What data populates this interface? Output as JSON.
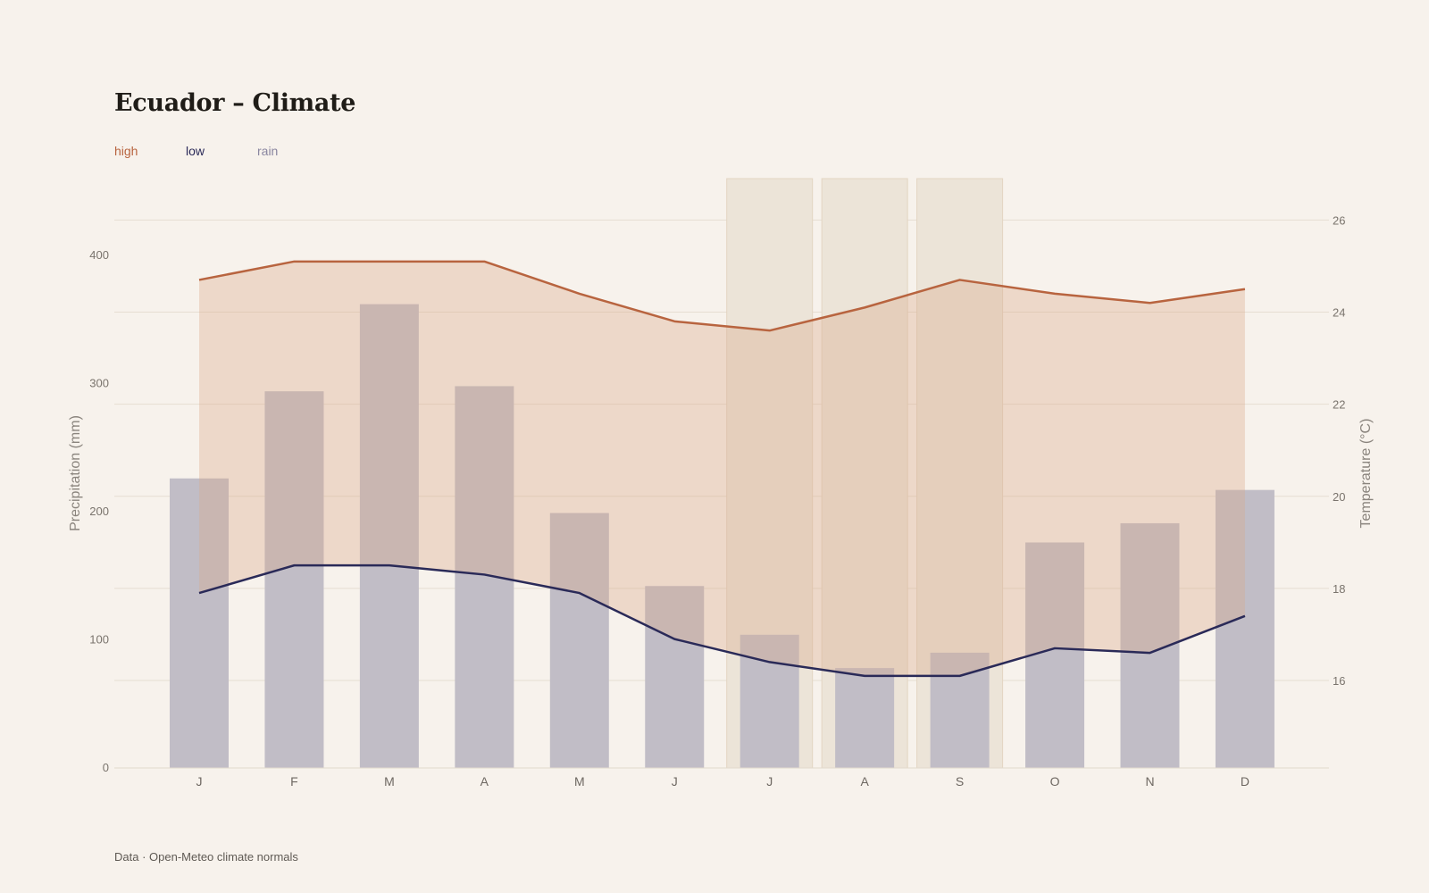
{
  "chart_data": {
    "type": "bar",
    "title": "Ecuador – Climate",
    "categories": [
      "J",
      "F",
      "M",
      "A",
      "M",
      "J",
      "J",
      "A",
      "S",
      "O",
      "N",
      "D"
    ],
    "series": [
      {
        "name": "high",
        "kind": "line",
        "axis": "right",
        "color": "#b8643f",
        "values": [
          24.7,
          25.1,
          25.1,
          25.1,
          24.4,
          23.8,
          23.6,
          24.1,
          24.7,
          24.4,
          24.2,
          24.5
        ]
      },
      {
        "name": "low",
        "kind": "line",
        "axis": "right",
        "color": "#2a2a58",
        "values": [
          17.9,
          18.5,
          18.5,
          18.3,
          17.9,
          16.9,
          16.4,
          16.1,
          16.1,
          16.7,
          16.6,
          17.4
        ]
      },
      {
        "name": "rain",
        "kind": "bar",
        "axis": "left",
        "color": "#8a86a0",
        "values": [
          226,
          294,
          362,
          298,
          199,
          142,
          104,
          78,
          90,
          176,
          191,
          217
        ]
      }
    ],
    "highlight_months": [
      "J",
      "A",
      "S"
    ],
    "ylabel_left": "Precipitation (mm)",
    "ylabel_right": "Temperature (°C)",
    "ylim_left": [
      0,
      460
    ],
    "yticks_left": [
      0,
      100,
      200,
      300,
      400
    ],
    "ylim_right": [
      14.1,
      26.9
    ],
    "yticks_right": [
      16,
      18,
      20,
      22,
      24,
      26
    ],
    "grid": true,
    "legend": "top-left",
    "colors": {
      "background": "#f7f2ec",
      "band_fill": "#d9a98a",
      "highlight": "#ece4d8"
    }
  },
  "legend": {
    "high": "high",
    "low": "low",
    "rain": "rain"
  },
  "footer": "Data · Open-Meteo climate normals"
}
